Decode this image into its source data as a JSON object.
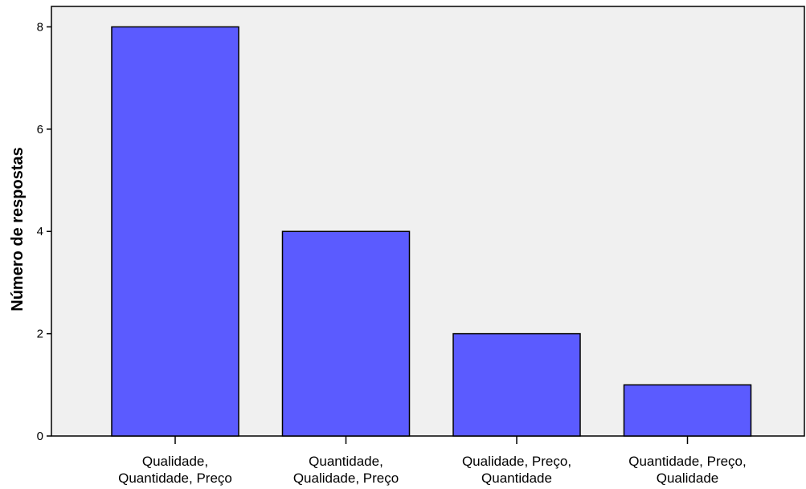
{
  "chart_data": {
    "type": "bar",
    "categories": [
      [
        "Qualidade,",
        "Quantidade, Preço"
      ],
      [
        "Quantidade,",
        "Qualidade, Preço"
      ],
      [
        "Qualidade, Preço,",
        "Quantidade"
      ],
      [
        "Quantidade, Preço,",
        "Qualidade"
      ]
    ],
    "values": [
      8,
      4,
      2,
      1
    ],
    "title": "",
    "xlabel": "",
    "ylabel": "Número de respostas",
    "ylim": [
      0,
      8.4
    ],
    "yticks": [
      0,
      2,
      4,
      6,
      8
    ],
    "grid": false,
    "colors": {
      "bar": "#5b5bff",
      "plot_background": "#f0f0f0",
      "axis": "#000000"
    }
  }
}
